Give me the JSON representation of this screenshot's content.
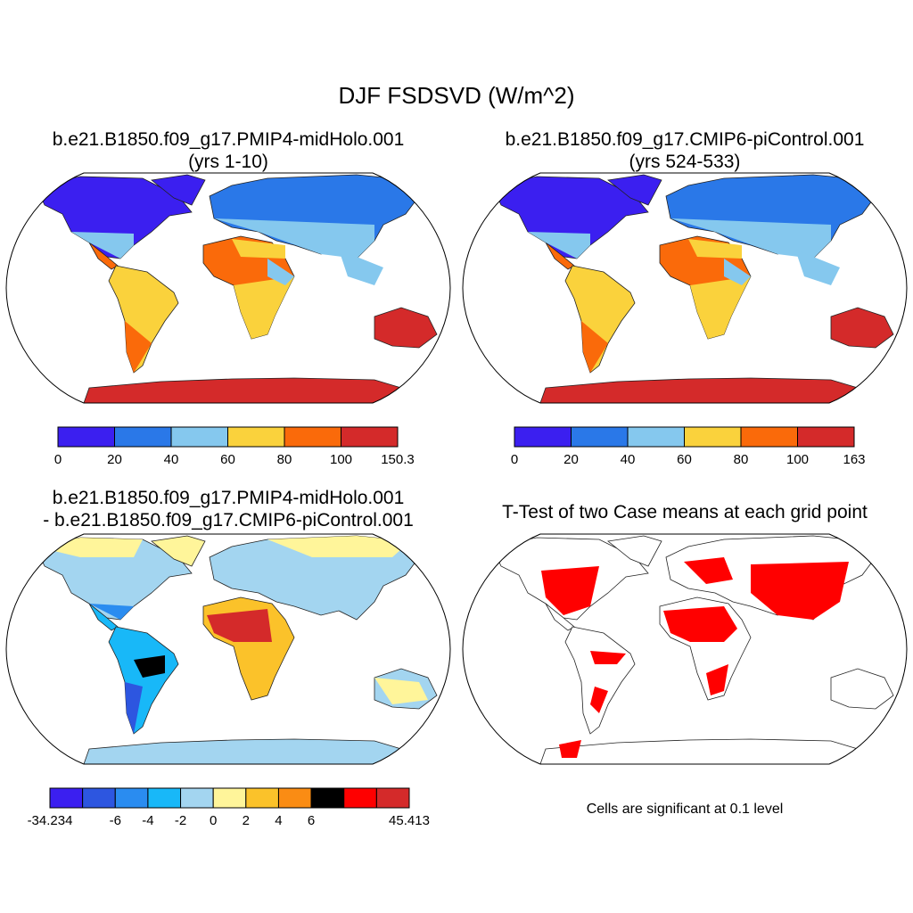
{
  "figure": {
    "title": "DJF FSDSVD (W/m^2)"
  },
  "panels": [
    {
      "id": "case1",
      "title_line1": "b.e21.B1850.f09_g17.PMIP4-midHolo.001",
      "title_line2": "(yrs 1-10)",
      "colorbar": {
        "colors": [
          "#3b1ff0",
          "#2a78e8",
          "#85c8ee",
          "#fad23c",
          "#fa6a0a",
          "#d42a2a"
        ],
        "tick_labels": [
          "0",
          "20",
          "40",
          "60",
          "80",
          "100",
          "150.3"
        ]
      }
    },
    {
      "id": "case2",
      "title_line1": "b.e21.B1850.f09_g17.CMIP6-piControl.001",
      "title_line2": "(yrs 524-533)",
      "colorbar": {
        "colors": [
          "#3b1ff0",
          "#2a78e8",
          "#85c8ee",
          "#fad23c",
          "#fa6a0a",
          "#d42a2a"
        ],
        "tick_labels": [
          "0",
          "20",
          "40",
          "60",
          "80",
          "100",
          "163"
        ]
      }
    },
    {
      "id": "diff",
      "title_line1": "b.e21.B1850.f09_g17.PMIP4-midHolo.001",
      "title_line2": "- b.e21.B1850.f09_g17.CMIP6-piControl.001",
      "colorbar": {
        "colors": [
          "#3b1ff0",
          "#2d56e0",
          "#2a8cf0",
          "#18b8f8",
          "#a3d5f0",
          "#fff59a",
          "#fbc22a",
          "#fa8c14",
          "#f5a0a",
          "#fe0000",
          "#d42a2a"
        ],
        "tick_labels": [
          "-34.234",
          "-6",
          "-4",
          "-2",
          "0",
          "2",
          "4",
          "6",
          "45.413"
        ]
      }
    },
    {
      "id": "ttest",
      "title_line1": "T-Test of two Case means at each grid point",
      "footnote": "Cells are significant at 0.1 level",
      "colors": {
        "significant": "#ff0000"
      }
    }
  ]
}
